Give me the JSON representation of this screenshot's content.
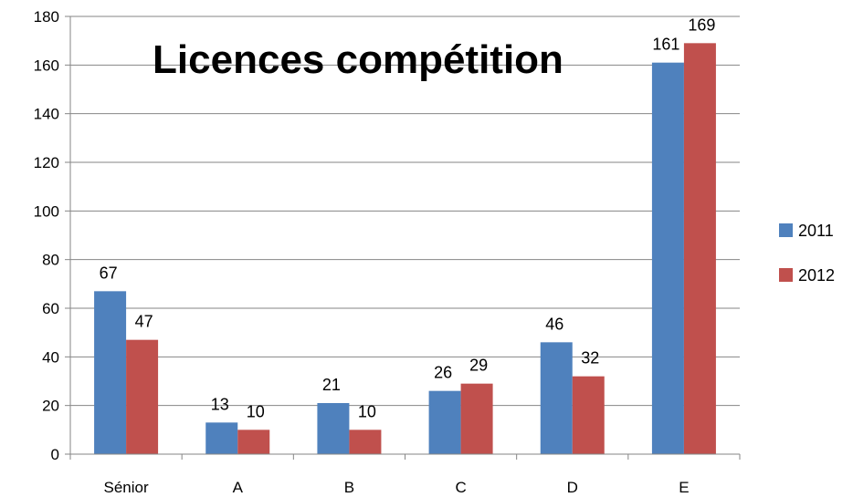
{
  "chart_data": {
    "type": "bar",
    "title": "Licences compétition",
    "categories": [
      "Sénior",
      "A",
      "B",
      "C",
      "D",
      "E"
    ],
    "series": [
      {
        "name": "2011",
        "color": "#4F81BD",
        "values": [
          67,
          13,
          21,
          26,
          46,
          161
        ]
      },
      {
        "name": "2012",
        "color": "#C0504D",
        "values": [
          47,
          10,
          10,
          29,
          32,
          169
        ]
      }
    ],
    "ylim": [
      0,
      180
    ],
    "yticks": [
      0,
      20,
      40,
      60,
      80,
      100,
      120,
      140,
      160,
      180
    ],
    "grid": true,
    "legend_position": "right",
    "xlabel": "",
    "ylabel": ""
  }
}
